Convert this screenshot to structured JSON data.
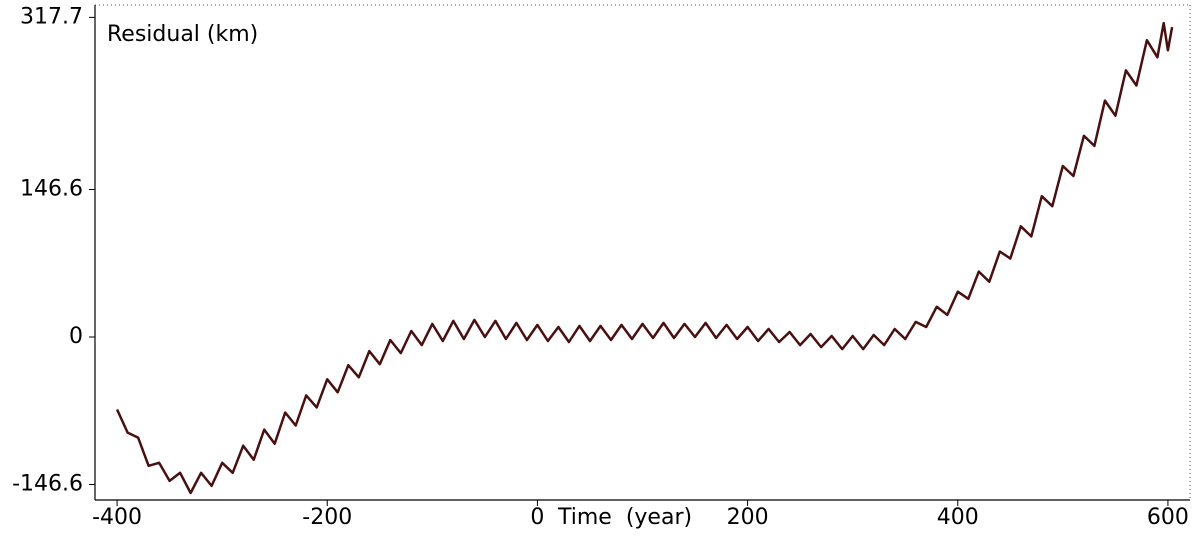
{
  "chart_data": {
    "type": "line",
    "y_label": "Residual (km)",
    "x_label": "Time  (year)",
    "series": [
      {
        "color": "#4a1010",
        "x": [
          -400,
          -390,
          -380,
          -370,
          -360,
          -350,
          -340,
          -330,
          -320,
          -310,
          -300,
          -290,
          -280,
          -270,
          -260,
          -250,
          -240,
          -230,
          -220,
          -210,
          -200,
          -190,
          -180,
          -170,
          -160,
          -150,
          -140,
          -130,
          -120,
          -110,
          -100,
          -90,
          -80,
          -70,
          -60,
          -50,
          -40,
          -30,
          -20,
          -10,
          0,
          10,
          20,
          30,
          40,
          50,
          60,
          70,
          80,
          90,
          100,
          110,
          120,
          130,
          140,
          150,
          160,
          170,
          180,
          190,
          200,
          210,
          220,
          230,
          240,
          250,
          260,
          270,
          280,
          290,
          300,
          310,
          320,
          330,
          340,
          350,
          360,
          370,
          380,
          390,
          400,
          410,
          420,
          430,
          440,
          450,
          460,
          470,
          480,
          490,
          500,
          510,
          520,
          530,
          540,
          550,
          560,
          570,
          580,
          590,
          596,
          600,
          604
        ],
        "values": [
          -72,
          -95,
          -100,
          -128,
          -125,
          -143,
          -135,
          -155,
          -135,
          -148,
          -125,
          -135,
          -108,
          -122,
          -92,
          -106,
          -75,
          -88,
          -58,
          -70,
          -42,
          -55,
          -28,
          -40,
          -14,
          -27,
          -3,
          -16,
          6,
          -8,
          13,
          -4,
          16,
          -2,
          17,
          0,
          16,
          -2,
          14,
          -3,
          12,
          -4,
          10,
          -5,
          11,
          -4,
          11,
          -3,
          12,
          -2,
          13,
          -1,
          14,
          -1,
          13,
          0,
          14,
          -1,
          12,
          -2,
          10,
          -4,
          8,
          -5,
          5,
          -8,
          3,
          -10,
          1,
          -12,
          1,
          -12,
          2,
          -8,
          8,
          -2,
          15,
          10,
          30,
          22,
          45,
          38,
          65,
          55,
          85,
          78,
          110,
          100,
          140,
          130,
          170,
          160,
          200,
          190,
          235,
          220,
          265,
          250,
          295,
          278,
          312,
          285,
          308
        ]
      }
    ],
    "xlim": [
      -421,
      621
    ],
    "ylim": [
      -162,
      330
    ],
    "xticks": [
      -400,
      -200,
      0,
      200,
      400,
      600
    ],
    "yticks": [
      -146.6,
      0,
      146.6,
      317.7
    ]
  }
}
